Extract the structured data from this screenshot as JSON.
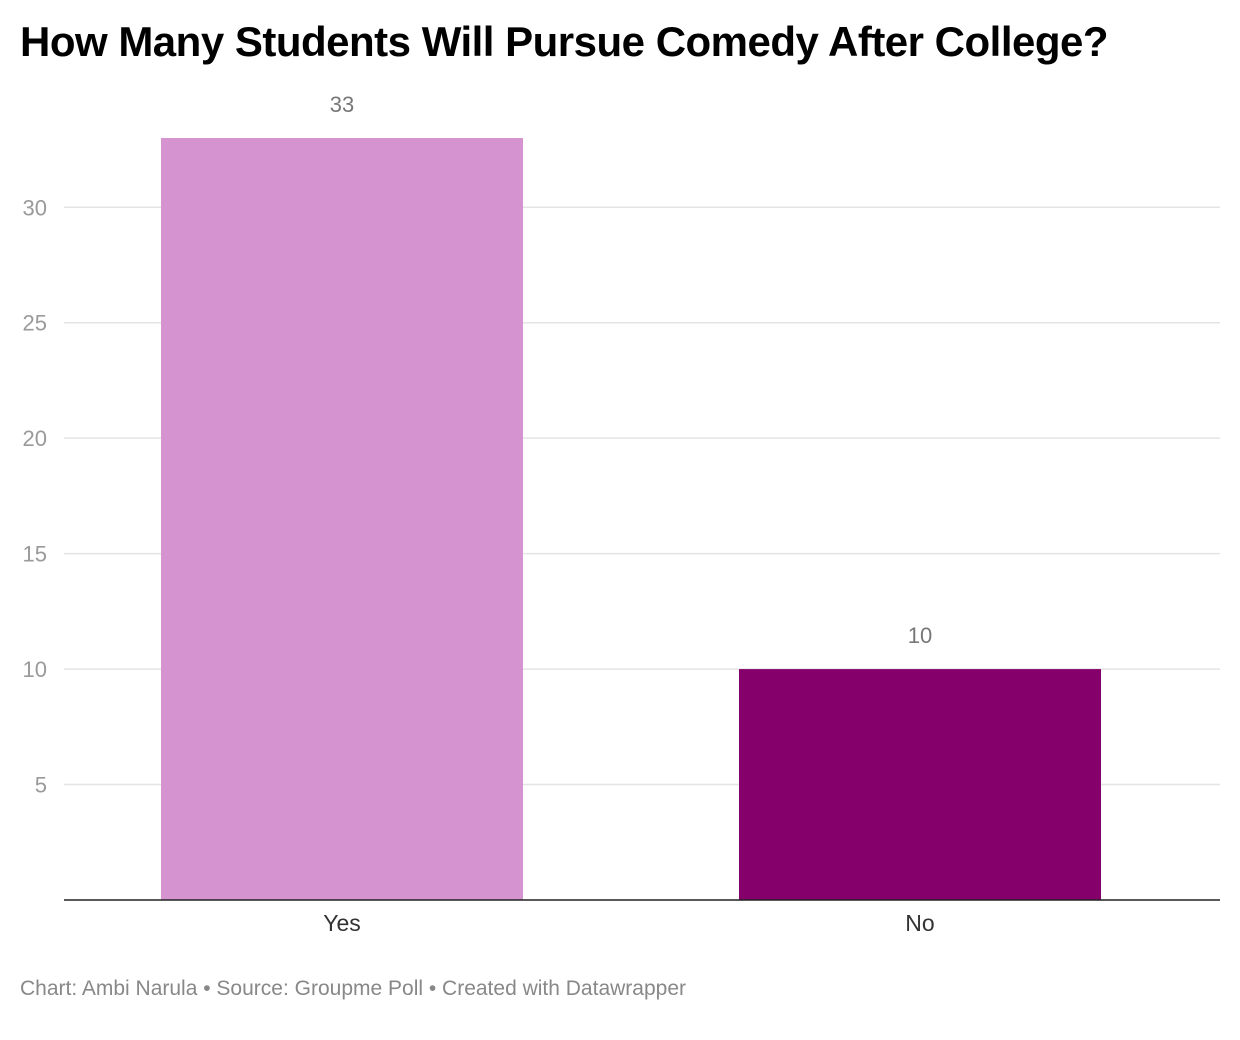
{
  "chart_data": {
    "type": "bar",
    "title": "How Many Students Will Pursue Comedy After College?",
    "categories": [
      "Yes",
      "No"
    ],
    "values": [
      33,
      10
    ],
    "colors": [
      "#d593d0",
      "#86006c"
    ],
    "ylim": [
      0,
      33
    ],
    "yticks": [
      5,
      10,
      15,
      20,
      25,
      30
    ],
    "grid": true,
    "xlabel": "",
    "ylabel": ""
  },
  "footer": {
    "text": "Chart: Ambi Narula • Source: Groupme Poll • Created with Datawrapper"
  }
}
